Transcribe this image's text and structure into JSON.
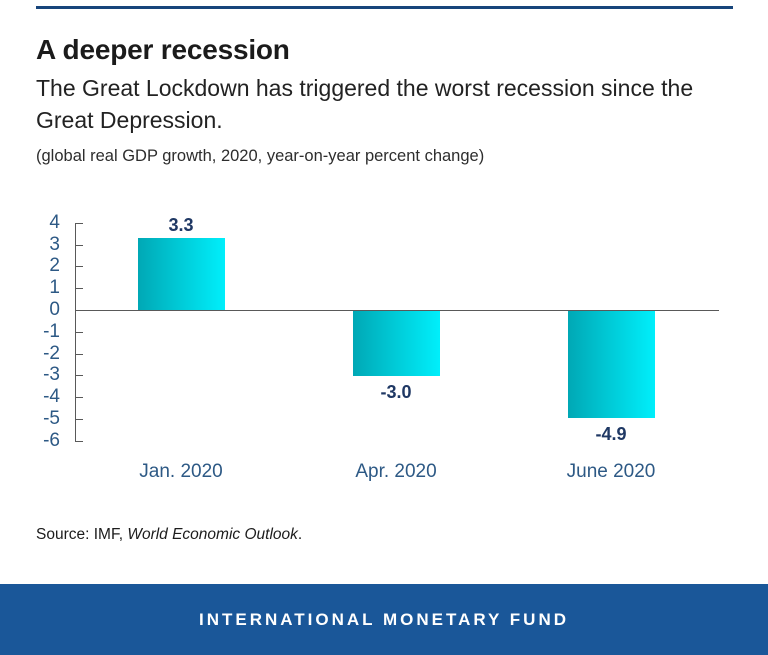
{
  "header": {
    "title": "A deeper recession",
    "subtitle_lines": [
      "The Great Lockdown has triggered the worst recession since the",
      "Great Depression."
    ],
    "note": "(global real GDP growth, 2020, year-on-year percent change)"
  },
  "chart_data": {
    "type": "bar",
    "title": "A deeper recession",
    "subtitle": "The Great Lockdown has triggered the worst recession since the Great Depression.",
    "units_note": "(global real GDP growth, 2020, year-on-year percent change)",
    "categories": [
      "Jan. 2020",
      "Apr. 2020",
      "June 2020"
    ],
    "values": [
      3.3,
      -3.0,
      -4.9
    ],
    "data_labels": [
      "3.3",
      "-3.0",
      "-4.9"
    ],
    "xlabel": "",
    "ylabel": "",
    "ylim": [
      -6,
      4
    ],
    "yticks": [
      4,
      3,
      2,
      1,
      0,
      -1,
      -2,
      -3,
      -4,
      -5,
      -6
    ],
    "grid": false,
    "legend": null,
    "bar_gradient": [
      "#00a8b5",
      "#00effb"
    ],
    "axis_color": "#595959",
    "tick_label_color": "#2d5985",
    "value_label_color": "#1f3864"
  },
  "source": {
    "prefix": "Source: IMF, ",
    "italic": "World Economic Outlook",
    "suffix": "."
  },
  "footer": {
    "label": "INTERNATIONAL MONETARY FUND",
    "background": "#1a5799"
  },
  "colors": {
    "top_rule": "#17457b"
  }
}
